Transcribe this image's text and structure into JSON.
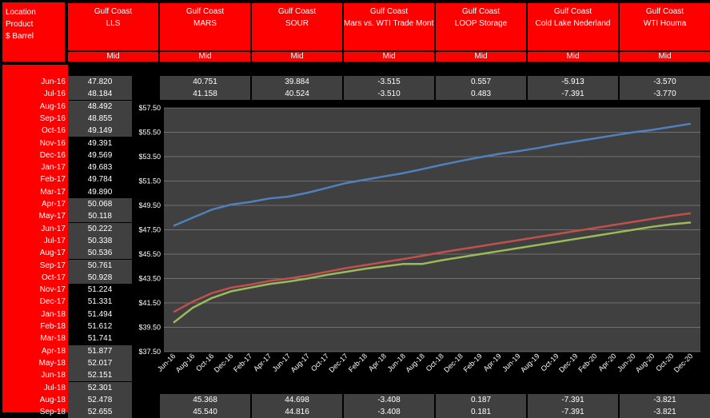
{
  "header": {
    "left_labels": [
      "Location",
      "Product",
      "$ Barrel"
    ],
    "columns": [
      {
        "location": "Gulf Coast",
        "product": "LLS",
        "sub": "Mid"
      },
      {
        "location": "Gulf Coast",
        "product": "MARS",
        "sub": "Mid"
      },
      {
        "location": "Gulf Coast",
        "product": "SOUR",
        "sub": "Mid"
      },
      {
        "location": "Gulf Coast",
        "product": "Mars vs. WTI Trade Month",
        "sub": "Mid"
      },
      {
        "location": "Gulf Coast",
        "product": "LOOP Storage",
        "sub": "Mid"
      },
      {
        "location": "Gulf Coast",
        "product": "Cold Lake Nederland",
        "sub": "Mid"
      },
      {
        "location": "Gulf Coast",
        "product": "WTI Houma",
        "sub": "Mid"
      }
    ]
  },
  "rows": [
    {
      "date": "Jun-16",
      "lls": "47.820",
      "mars": "40.751",
      "sour": "39.884",
      "mvw": "-3.515",
      "loop": "0.557",
      "cold": "-5.913",
      "wti": "-3.570"
    },
    {
      "date": "Jul-16",
      "lls": "48.184",
      "mars": "41.158",
      "sour": "40.524",
      "mvw": "-3.510",
      "loop": "0.483",
      "cold": "-7.391",
      "wti": "-3.770"
    },
    {
      "date": "Aug-16",
      "lls": "48.492"
    },
    {
      "date": "Sep-16",
      "lls": "48.855"
    },
    {
      "date": "Oct-16",
      "lls": "49.149"
    },
    {
      "date": "Nov-16",
      "lls": "49.391"
    },
    {
      "date": "Dec-16",
      "lls": "49.569"
    },
    {
      "date": "Jan-17",
      "lls": "49.683"
    },
    {
      "date": "Feb-17",
      "lls": "49.784"
    },
    {
      "date": "Mar-17",
      "lls": "49.890"
    },
    {
      "date": "Apr-17",
      "lls": "50.068"
    },
    {
      "date": "May-17",
      "lls": "50.118"
    },
    {
      "date": "Jun-17",
      "lls": "50.222"
    },
    {
      "date": "Jul-17",
      "lls": "50.338"
    },
    {
      "date": "Aug-17",
      "lls": "50.536"
    },
    {
      "date": "Sep-17",
      "lls": "50.761"
    },
    {
      "date": "Oct-17",
      "lls": "50.928"
    },
    {
      "date": "Nov-17",
      "lls": "51.224"
    },
    {
      "date": "Dec-17",
      "lls": "51.331"
    },
    {
      "date": "Jan-18",
      "lls": "51.494"
    },
    {
      "date": "Feb-18",
      "lls": "51.612"
    },
    {
      "date": "Mar-18",
      "lls": "51.741"
    },
    {
      "date": "Apr-18",
      "lls": "51.877"
    },
    {
      "date": "May-18",
      "lls": "52.017"
    },
    {
      "date": "Jun-18",
      "lls": "52.151"
    },
    {
      "date": "Jul-18",
      "lls": "52.301"
    },
    {
      "date": "Aug-18",
      "lls": "52.478",
      "mars": "45.368",
      "sour": "44.698",
      "mvw": "-3.408",
      "loop": "0.187",
      "cold": "-7.391",
      "wti": "-3.821"
    },
    {
      "date": "Sep-18",
      "lls": "52.655",
      "mars": "45.540",
      "sour": "44.816",
      "mvw": "-3.408",
      "loop": "0.181",
      "cold": "-7.391",
      "wti": "-3.821"
    }
  ],
  "chart_data": {
    "type": "line",
    "x": [
      "Jun-16",
      "Aug-16",
      "Oct-16",
      "Dec-16",
      "Feb-17",
      "Apr-17",
      "Jun-17",
      "Aug-17",
      "Oct-17",
      "Dec-17",
      "Feb-18",
      "Apr-18",
      "Jun-18",
      "Aug-18",
      "Oct-18",
      "Dec-18",
      "Feb-19",
      "Apr-19",
      "Jun-19",
      "Aug-19",
      "Oct-19",
      "Dec-19",
      "Feb-20",
      "Apr-20",
      "Jun-20",
      "Aug-20",
      "Oct-20",
      "Dec-20"
    ],
    "series": [
      {
        "color": "#4f81bd",
        "values": [
          47.82,
          48.49,
          49.15,
          49.57,
          49.78,
          50.07,
          50.22,
          50.54,
          50.93,
          51.33,
          51.61,
          51.88,
          52.15,
          52.48,
          52.83,
          53.15,
          53.45,
          53.73,
          53.95,
          54.2,
          54.5,
          54.75,
          55.0,
          55.25,
          55.5,
          55.7,
          55.95,
          56.2
        ]
      },
      {
        "color": "#c0504d",
        "values": [
          40.75,
          41.6,
          42.3,
          42.75,
          43.0,
          43.3,
          43.5,
          43.75,
          44.05,
          44.35,
          44.6,
          44.85,
          45.1,
          45.37,
          45.65,
          45.9,
          46.15,
          46.4,
          46.65,
          46.9,
          47.15,
          47.4,
          47.65,
          47.9,
          48.15,
          48.4,
          48.65,
          48.85
        ]
      },
      {
        "color": "#9bbb59",
        "values": [
          39.88,
          41.1,
          41.9,
          42.45,
          42.75,
          43.05,
          43.25,
          43.5,
          43.8,
          44.05,
          44.3,
          44.5,
          44.7,
          44.7,
          45.0,
          45.25,
          45.5,
          45.75,
          46.0,
          46.25,
          46.5,
          46.75,
          47.0,
          47.25,
          47.5,
          47.75,
          47.95,
          48.1
        ]
      }
    ],
    "ylim": [
      37.5,
      57.5
    ],
    "yticks": [
      "$37.50",
      "$39.50",
      "$41.50",
      "$43.50",
      "$45.50",
      "$47.50",
      "$49.50",
      "$51.50",
      "$53.50",
      "$55.50",
      "$57.50"
    ],
    "grid": true,
    "background": "#404040"
  }
}
